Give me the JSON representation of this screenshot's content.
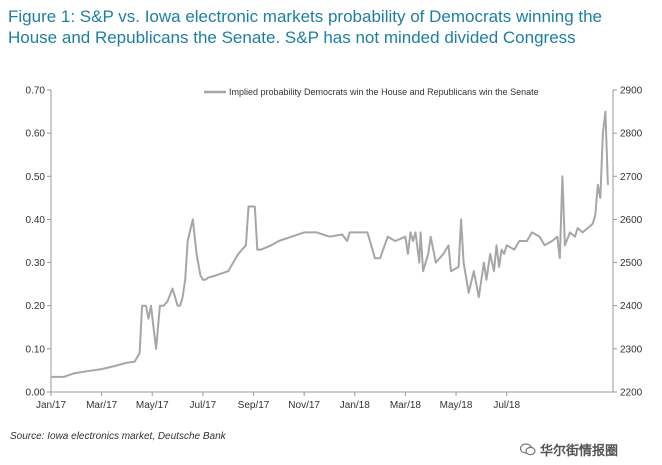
{
  "header": {
    "title": "Figure 1: S&P vs. Iowa electronic markets probability of Democrats winning the House and Republicans the Senate. S&P has not minded divided Congress"
  },
  "footer": {
    "source": "Source: Iowa electronics market, Deutsche Bank",
    "watermark": "华尔街情报圈"
  },
  "colors": {
    "title": "#1e7ea3",
    "series": "#a6a6a6",
    "axis": "#999999"
  },
  "chart_data": {
    "type": "line",
    "title": "",
    "legend": "Implied probability Democrats win the House and Republicans win the Senate",
    "legend_position": "top-right",
    "x_labels": [
      "Jan/17",
      "Mar/17",
      "May/17",
      "Jul/17",
      "Sep/17",
      "Nov/17",
      "Jan/18",
      "Mar/18",
      "May/18",
      "Jul/18"
    ],
    "xlim": [
      0,
      22.2
    ],
    "ylim": [
      0,
      0.7
    ],
    "y_ticks": [
      "0.00",
      "0.10",
      "0.20",
      "0.30",
      "0.40",
      "0.50",
      "0.60",
      "0.70"
    ],
    "y2lim": [
      2200,
      2900
    ],
    "y2_ticks": [
      "2200",
      "2300",
      "2400",
      "2500",
      "2600",
      "2700",
      "2800",
      "2900"
    ],
    "series": [
      {
        "name": "Implied probability Democrats win the House and Republicans win the Senate",
        "x": [
          0,
          0.5,
          0.9,
          1.4,
          2,
          2.5,
          3,
          3.3,
          3.5,
          3.6,
          3.75,
          3.85,
          3.95,
          4.05,
          4.15,
          4.3,
          4.45,
          4.6,
          4.8,
          5.0,
          5.1,
          5.2,
          5.3,
          5.4,
          5.6,
          5.75,
          5.9,
          6.0,
          6.1,
          6.2,
          6.5,
          7.0,
          7.4,
          7.7,
          7.8,
          8.05,
          8.15,
          8.3,
          8.7,
          9.0,
          9.5,
          10.0,
          10.5,
          11.0,
          11.5,
          11.7,
          11.8,
          12.3,
          12.5,
          12.8,
          13.0,
          13.3,
          13.6,
          13.8,
          14.0,
          14.1,
          14.2,
          14.3,
          14.4,
          14.55,
          14.6,
          14.7,
          14.9,
          15.0,
          15.2,
          15.5,
          15.7,
          15.8,
          16.1,
          16.2,
          16.3,
          16.5,
          16.7,
          16.9,
          17.1,
          17.2,
          17.35,
          17.5,
          17.6,
          17.7,
          17.8,
          17.9,
          18.0,
          18.3,
          18.5,
          18.8,
          19.0,
          19.3,
          19.5,
          19.8,
          20.0,
          20.1,
          20.2,
          20.3,
          20.5,
          20.7,
          20.8,
          21.0,
          21.2,
          21.4,
          21.5,
          21.6,
          21.7,
          21.8,
          21.9,
          22.0
        ],
        "values": [
          0.035,
          0.035,
          0.043,
          0.048,
          0.053,
          0.06,
          0.068,
          0.07,
          0.09,
          0.2,
          0.2,
          0.17,
          0.2,
          0.15,
          0.1,
          0.2,
          0.2,
          0.21,
          0.24,
          0.2,
          0.2,
          0.22,
          0.26,
          0.35,
          0.4,
          0.32,
          0.27,
          0.26,
          0.26,
          0.265,
          0.27,
          0.28,
          0.32,
          0.34,
          0.43,
          0.43,
          0.33,
          0.33,
          0.34,
          0.35,
          0.36,
          0.37,
          0.37,
          0.36,
          0.365,
          0.35,
          0.37,
          0.37,
          0.37,
          0.31,
          0.31,
          0.36,
          0.35,
          0.355,
          0.36,
          0.32,
          0.37,
          0.35,
          0.37,
          0.3,
          0.37,
          0.28,
          0.32,
          0.36,
          0.3,
          0.32,
          0.34,
          0.28,
          0.29,
          0.4,
          0.3,
          0.23,
          0.28,
          0.22,
          0.3,
          0.26,
          0.32,
          0.28,
          0.34,
          0.29,
          0.33,
          0.32,
          0.34,
          0.33,
          0.35,
          0.35,
          0.37,
          0.36,
          0.34,
          0.35,
          0.36,
          0.31,
          0.5,
          0.34,
          0.37,
          0.36,
          0.38,
          0.37,
          0.38,
          0.39,
          0.41,
          0.48,
          0.45,
          0.6,
          0.65,
          0.48
        ]
      }
    ]
  }
}
